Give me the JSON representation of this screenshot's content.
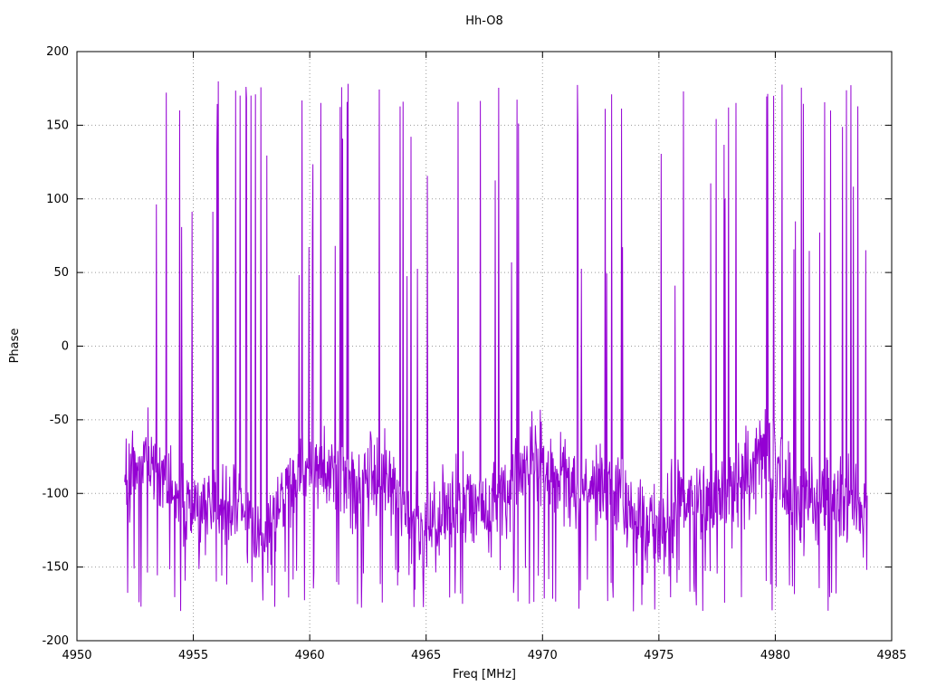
{
  "page": {
    "background": "#ffffff"
  },
  "chart_data": {
    "type": "line",
    "title": "Hh-O8",
    "xlabel": "Freq [MHz]",
    "ylabel": "Phase",
    "xlim": [
      4950,
      4985
    ],
    "ylim": [
      -200,
      200
    ],
    "xticks": [
      4950,
      4955,
      4960,
      4965,
      4970,
      4975,
      4980,
      4985
    ],
    "yticks": [
      -200,
      -150,
      -100,
      -50,
      0,
      50,
      100,
      150,
      200
    ],
    "grid": true,
    "grid_style": "dotted",
    "grid_color": "#9a9a9a",
    "legend": "none",
    "line_color": "#9400d3",
    "line_width": 1,
    "series_name": "phase",
    "data_extent_x": [
      4952.05,
      4983.95
    ],
    "baseline_mean": -100,
    "baseline_band": [
      -150,
      -50
    ],
    "spike_top_limit": 180,
    "spike_bottom_limit": -180,
    "description": "Dense noisy interferometric phase vs frequency; bulk of samples scatter between -150 and -50 degrees around a -100 baseline, with frequent single-sample phase-wrap spikes reaching +180 and -180 across the whole band 4952-4984 MHz.",
    "synthesis": {
      "seed": 1337,
      "n_points": 1500,
      "x_start": 4952.05,
      "x_end": 4983.95,
      "base_mean": -100,
      "base_slow_amp1": 16,
      "base_slow_freq1": 0.7,
      "base_slow_amp2": 9,
      "base_slow_freq2": 1.9,
      "noise_gauss_sd": 26,
      "noise_uniform_span": 24,
      "spike_up_prob_min": 0.03,
      "spike_up_prob_var": 0.035,
      "spike_down_prob": 0.05,
      "clamp": [
        -180,
        180
      ]
    }
  }
}
